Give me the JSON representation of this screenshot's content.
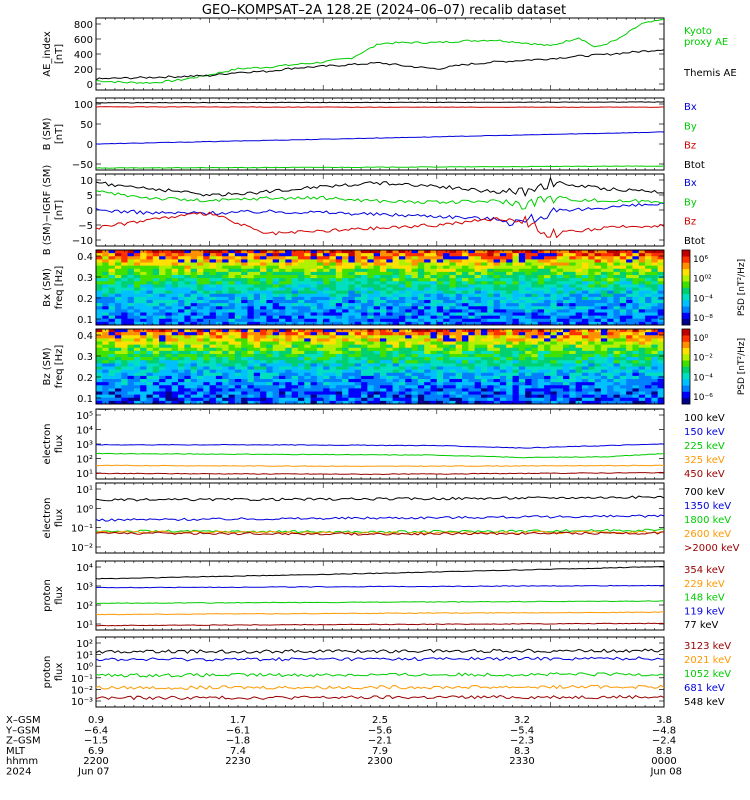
{
  "title": "GEO–KOMPSAT–2A 128.2E (2024–06–07) recalib dataset",
  "colors": {
    "black": "#000000",
    "red": "#d00000",
    "green": "#00cc00",
    "blue": "#0000dd",
    "orange": "#ff9900",
    "darkred": "#990000",
    "cyan": "#00bbff"
  },
  "chart_data": [
    {
      "id": "ae",
      "type": "line",
      "ylabel": [
        "AE_index",
        "[nT]"
      ],
      "yticks": [
        "800",
        "600",
        "400",
        "200",
        "0"
      ],
      "ylim": [
        0,
        850
      ],
      "series": [
        {
          "name": "Kyoto\nproxy AE",
          "color": "green",
          "x": [
            0,
            0.05,
            0.1,
            0.15,
            0.2,
            0.25,
            0.3,
            0.35,
            0.4,
            0.45,
            0.5,
            0.55,
            0.6,
            0.65,
            0.7,
            0.75,
            0.8,
            0.85,
            0.88,
            0.92,
            0.96,
            1.0
          ],
          "y": [
            110,
            90,
            85,
            120,
            180,
            250,
            270,
            300,
            330,
            380,
            550,
            560,
            560,
            580,
            590,
            560,
            520,
            620,
            500,
            600,
            780,
            830
          ]
        },
        {
          "name": "Themis AE",
          "color": "black",
          "x": [
            0,
            0.05,
            0.1,
            0.15,
            0.2,
            0.25,
            0.3,
            0.35,
            0.4,
            0.45,
            0.5,
            0.55,
            0.6,
            0.65,
            0.7,
            0.75,
            0.8,
            0.85,
            0.9,
            0.95,
            1.0
          ],
          "y": [
            130,
            140,
            150,
            160,
            170,
            210,
            220,
            260,
            280,
            300,
            320,
            280,
            250,
            300,
            330,
            350,
            370,
            400,
            420,
            450,
            480
          ]
        }
      ]
    },
    {
      "id": "bsm",
      "type": "line",
      "ylabel": [
        "B (SM)",
        "[nT]"
      ],
      "yticks": [
        "100",
        "50",
        "0",
        "−50"
      ],
      "ylim": [
        -60,
        120
      ],
      "series": [
        {
          "name": "Bx",
          "color": "blue",
          "x": [
            0,
            0.5,
            1
          ],
          "y": [
            5,
            20,
            35
          ]
        },
        {
          "name": "By",
          "color": "green",
          "x": [
            0,
            0.5,
            1
          ],
          "y": [
            -55,
            -53,
            -50
          ]
        },
        {
          "name": "Bz",
          "color": "red",
          "x": [
            0,
            0.5,
            1
          ],
          "y": [
            98,
            97,
            97
          ]
        },
        {
          "name": "Btot",
          "color": "black",
          "x": [
            0,
            0.5,
            1
          ],
          "y": [
            108,
            109,
            110
          ]
        }
      ]
    },
    {
      "id": "bdiff",
      "type": "line",
      "ylabel": [
        "B (SM)−IGRF (SM)",
        "[nT]"
      ],
      "yticks": [
        "10",
        "5",
        "0",
        "−5",
        "−10"
      ],
      "ylim": [
        -12,
        12
      ],
      "series": [
        {
          "name": "Bx",
          "color": "blue",
          "x": [
            0,
            0.1,
            0.2,
            0.3,
            0.4,
            0.5,
            0.6,
            0.7,
            0.75,
            0.8,
            0.9,
            1.0
          ],
          "y": [
            0,
            -1,
            -1,
            -0.5,
            -0.8,
            -1.5,
            -2,
            -3,
            -4,
            -1,
            1,
            2
          ]
        },
        {
          "name": "By",
          "color": "green",
          "x": [
            0,
            0.1,
            0.2,
            0.3,
            0.4,
            0.5,
            0.6,
            0.7,
            0.75,
            0.8,
            0.9,
            1.0
          ],
          "y": [
            6,
            4,
            3,
            4,
            4,
            3,
            2.5,
            3,
            2,
            4,
            3,
            3
          ]
        },
        {
          "name": "Bz",
          "color": "red",
          "x": [
            0,
            0.1,
            0.2,
            0.3,
            0.4,
            0.5,
            0.6,
            0.7,
            0.75,
            0.8,
            0.9,
            1.0
          ],
          "y": [
            -6,
            -3,
            -1,
            -8,
            -7,
            -6,
            -5,
            -3,
            -3,
            -8,
            -6,
            -5
          ]
        },
        {
          "name": "Btot",
          "color": "black",
          "x": [
            0,
            0.1,
            0.2,
            0.3,
            0.4,
            0.5,
            0.6,
            0.7,
            0.75,
            0.8,
            0.9,
            1.0
          ],
          "y": [
            9,
            7,
            5,
            6,
            8,
            9,
            8,
            6,
            6,
            9,
            7,
            6
          ]
        }
      ]
    },
    {
      "id": "bxspec",
      "type": "heatmap",
      "ylabel": [
        "Bx (SM)",
        "freq [Hz]"
      ],
      "yticks": [
        "0.4",
        "0.3",
        "0.2",
        "0.1"
      ],
      "ylim": [
        0.02,
        0.5
      ],
      "colorbar": {
        "label": "PSD [nT²/Hz]",
        "ticks": [
          "10⁶",
          "10⁰²",
          "10⁻⁴",
          "10⁻⁸"
        ]
      }
    },
    {
      "id": "bzspec",
      "type": "heatmap",
      "ylabel": [
        "Bz (SM)",
        "freq [Hz]"
      ],
      "yticks": [
        "0.4",
        "0.3",
        "0.2",
        "0.1"
      ],
      "ylim": [
        0.02,
        0.5
      ],
      "colorbar": {
        "label": "PSD [nT²/Hz]",
        "ticks": [
          "10⁰",
          "10⁻²",
          "10⁻⁴",
          "10⁻⁶"
        ]
      }
    },
    {
      "id": "eflux1",
      "type": "line",
      "scale": "log",
      "ylabel": [
        "electron",
        "flux"
      ],
      "yticks": [
        "10⁵",
        "10⁴",
        "10³",
        "10²",
        "10¹"
      ],
      "ylim": [
        0.8,
        5.2
      ],
      "series": [
        {
          "name": "100 keV",
          "color": "black",
          "x": [
            0,
            1
          ],
          "y": [
            5.2,
            5.2
          ]
        },
        {
          "name": "150 keV",
          "color": "blue",
          "x": [
            0,
            0.3,
            0.6,
            0.75,
            0.9,
            1.0
          ],
          "y": [
            2.95,
            2.95,
            2.9,
            2.75,
            2.9,
            3.0
          ]
        },
        {
          "name": "225 keV",
          "color": "green",
          "x": [
            0,
            0.3,
            0.6,
            0.75,
            0.9,
            1.0
          ],
          "y": [
            2.4,
            2.35,
            2.3,
            2.15,
            2.2,
            2.4
          ]
        },
        {
          "name": "325 keV",
          "color": "orange",
          "x": [
            0,
            0.5,
            1.0
          ],
          "y": [
            1.65,
            1.6,
            1.65
          ]
        },
        {
          "name": "450 keV",
          "color": "darkred",
          "x": [
            0,
            0.5,
            1.0
          ],
          "y": [
            1.15,
            1.1,
            1.2
          ]
        }
      ]
    },
    {
      "id": "eflux2",
      "type": "line",
      "scale": "log",
      "ylabel": [
        "electron",
        "flux"
      ],
      "yticks": [
        "10¹",
        "10⁰",
        "10⁻¹",
        "10⁻²"
      ],
      "ylim": [
        -2.3,
        1.2
      ],
      "series": [
        {
          "name": "700 keV",
          "color": "black",
          "x": [
            0,
            0.5,
            1.0
          ],
          "y": [
            0.35,
            0.4,
            0.5
          ]
        },
        {
          "name": "1350 keV",
          "color": "blue",
          "x": [
            0,
            0.5,
            1.0
          ],
          "y": [
            -0.65,
            -0.55,
            -0.45
          ]
        },
        {
          "name": "1800 keV",
          "color": "green",
          "x": [
            0,
            0.5,
            1.0
          ],
          "y": [
            -1.2,
            -1.25,
            -1.15
          ]
        },
        {
          "name": "2600 keV",
          "color": "orange",
          "x": [
            0,
            0.5,
            1.0
          ],
          "y": [
            -1.25,
            -1.3,
            -1.25
          ]
        },
        {
          "name": ">2000 keV",
          "color": "darkred",
          "x": [
            0,
            0.5,
            1.0
          ],
          "y": [
            -1.3,
            -1.35,
            -1.3
          ]
        }
      ]
    },
    {
      "id": "pflux1",
      "type": "line",
      "scale": "log",
      "ylabel": [
        "proton",
        "flux"
      ],
      "yticks": [
        "10⁴",
        "10³",
        "10²",
        "10¹"
      ],
      "ylim": [
        1.0,
        4.1
      ],
      "series": [
        {
          "name": "354 keV",
          "color": "darkred",
          "x": [
            0,
            1
          ],
          "y": [
            1.2,
            1.3
          ]
        },
        {
          "name": "229 keV",
          "color": "orange",
          "x": [
            0,
            1
          ],
          "y": [
            1.7,
            1.8
          ]
        },
        {
          "name": "148 keV",
          "color": "green",
          "x": [
            0,
            1
          ],
          "y": [
            2.2,
            2.3
          ]
        },
        {
          "name": "119 keV",
          "color": "blue",
          "x": [
            0,
            1
          ],
          "y": [
            2.9,
            3.0
          ]
        },
        {
          "name": "77 keV",
          "color": "black",
          "x": [
            0,
            0.5,
            1.0
          ],
          "y": [
            3.3,
            3.55,
            3.85
          ]
        }
      ]
    },
    {
      "id": "pflux2",
      "type": "line",
      "scale": "log",
      "ylabel": [
        "proton",
        "flux"
      ],
      "yticks": [
        "10²",
        "10¹",
        "10⁰",
        "10⁻¹",
        "10⁻²",
        "10⁻³"
      ],
      "ylim": [
        -4.0,
        2.2
      ],
      "series": [
        {
          "name": "3123 keV",
          "color": "darkred",
          "x": [
            0,
            1
          ],
          "y": [
            -3.2,
            -3.1
          ]
        },
        {
          "name": "2021 keV",
          "color": "orange",
          "x": [
            0,
            1
          ],
          "y": [
            -2.3,
            -2.2
          ]
        },
        {
          "name": "1052 keV",
          "color": "green",
          "x": [
            0,
            1
          ],
          "y": [
            -1.2,
            -1.1
          ]
        },
        {
          "name": "681 keV",
          "color": "blue",
          "x": [
            0,
            1
          ],
          "y": [
            0.2,
            0.3
          ]
        },
        {
          "name": "548 keV",
          "color": "black",
          "x": [
            0,
            1
          ],
          "y": [
            0.9,
            1.0
          ]
        }
      ]
    }
  ],
  "xaxis": {
    "row_labels": [
      "X–GSM",
      "Y–GSM",
      "Z–GSM",
      "MLT",
      "hhmm",
      "2024"
    ],
    "columns": [
      [
        "0.9",
        "−6.4",
        "−1.5",
        "6.9",
        "2200",
        "Jun 07"
      ],
      [
        "1.7",
        "−6.1",
        "−1.8",
        "7.4",
        "2230",
        ""
      ],
      [
        "2.5",
        "−5.6",
        "−2.1",
        "7.9",
        "2300",
        ""
      ],
      [
        "3.2",
        "−5.4",
        "−2.3",
        "8.3",
        "2330",
        ""
      ],
      [
        "3.8",
        "−4.8",
        "−2.4",
        "8.8",
        "0000",
        "Jun 08"
      ]
    ]
  }
}
